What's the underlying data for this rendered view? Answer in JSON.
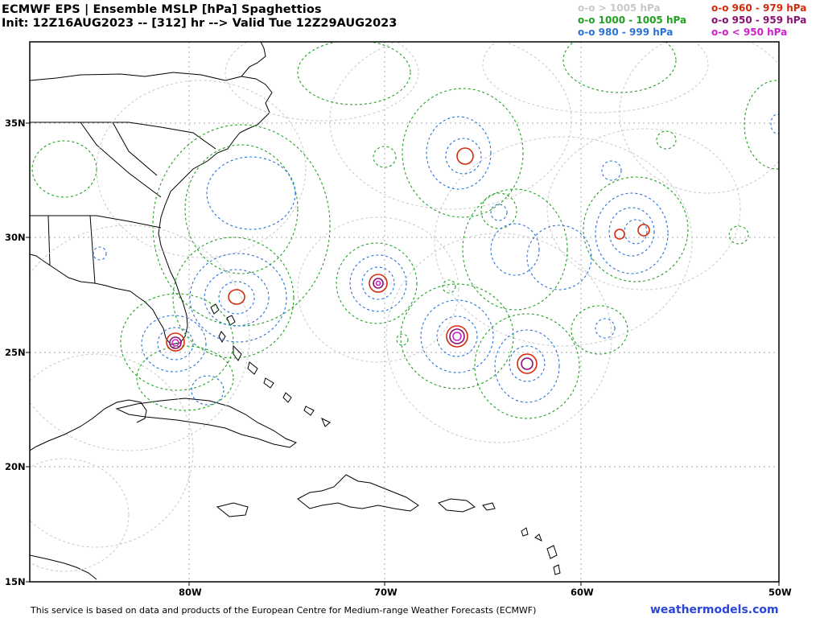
{
  "title": {
    "line1": "ECMWF EPS | Ensemble MSLP [hPa] Spaghettios",
    "line2": "Init: 12Z16AUG2023 -- [312] hr --> Valid Tue 12Z29AUG2023"
  },
  "legend": {
    "items": [
      {
        "label": "o-o > 1005 hPa",
        "color": "#c8c8c8"
      },
      {
        "label": "o-o 1000 - 1005 hPa",
        "color": "#22a022"
      },
      {
        "label": "o-o 980 - 999 hPa",
        "color": "#2a72d8"
      },
      {
        "label": "o-o 960 - 979 hPa",
        "color": "#d42a0a"
      },
      {
        "label": "o-o 950 - 959 hPa",
        "color": "#8a1070"
      },
      {
        "label": "o-o < 950 hPa",
        "color": "#d020d0"
      }
    ]
  },
  "axes": {
    "lat_labels": [
      "35N",
      "30N",
      "25N",
      "20N",
      "15N"
    ],
    "lon_labels": [
      "80W",
      "70W",
      "60W",
      "50W"
    ],
    "lat_range": [
      15,
      38.5
    ],
    "lon_range": [
      -90,
      -50
    ],
    "grid": true
  },
  "footer": "This service is based on data and products of the European Centre for Medium-range Weather Forecasts (ECMWF)",
  "site": "weathermodels.com",
  "lows": [
    {
      "name": "south-florida",
      "lon": -80.6,
      "lat": 25.4
    },
    {
      "name": "east-of-florida",
      "lon": -77.6,
      "lat": 27.4
    },
    {
      "name": "central-atlantic-north",
      "lon": -65.8,
      "lat": 33.5
    },
    {
      "name": "central-atlantic-west",
      "lon": -70.5,
      "lat": 28.1
    },
    {
      "name": "central-atlantic-main",
      "lon": -66.5,
      "lat": 25.7
    },
    {
      "name": "central-atlantic-south",
      "lon": -62.8,
      "lat": 24.5
    },
    {
      "name": "east-atlantic-a",
      "lon": -58.2,
      "lat": 30.2
    },
    {
      "name": "east-atlantic-b",
      "lon": -57.1,
      "lat": 30.4
    }
  ]
}
